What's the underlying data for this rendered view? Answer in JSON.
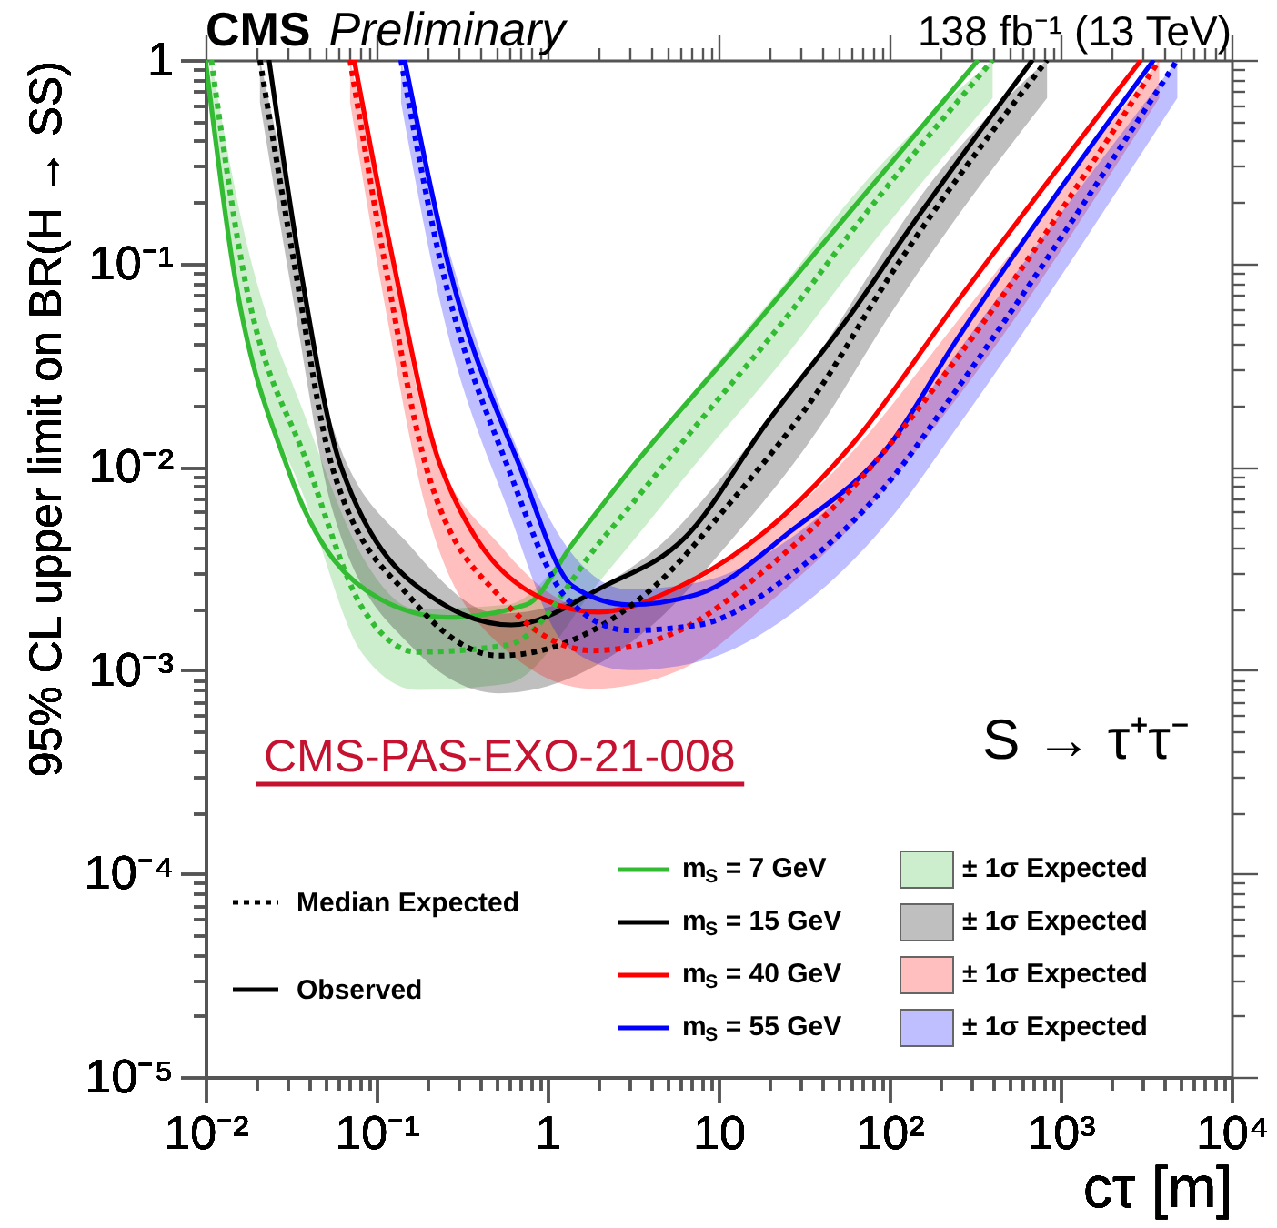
{
  "chart_data": {
    "type": "line",
    "title": "CMS",
    "subtitle": "Preliminary",
    "xlabel": "cτ [m]",
    "ylabel": "95% CL upper limit on BR(H → SS)",
    "log": "xy",
    "xlim": [
      0.01,
      10000
    ],
    "ylim": [
      1e-05,
      1
    ],
    "legend": "bottom right",
    "xticks": [
      {
        "value": 0.01,
        "label": "10⁻²"
      },
      {
        "value": 0.02,
        "label": null
      },
      {
        "value": 0.03,
        "label": null
      },
      {
        "value": 0.04,
        "label": null
      },
      {
        "value": 0.05,
        "label": null
      },
      {
        "value": 0.06,
        "label": null
      },
      {
        "value": 0.07,
        "label": null
      },
      {
        "value": 0.08,
        "label": null
      },
      {
        "value": 0.09,
        "label": null
      },
      {
        "value": 0.1,
        "label": "10⁻¹"
      },
      {
        "value": 0.2,
        "label": null
      },
      {
        "value": 0.3,
        "label": null
      },
      {
        "value": 0.4,
        "label": null
      },
      {
        "value": 0.5,
        "label": null
      },
      {
        "value": 0.6,
        "label": null
      },
      {
        "value": 0.7,
        "label": null
      },
      {
        "value": 0.8,
        "label": null
      },
      {
        "value": 0.9,
        "label": null
      },
      1,
      {
        "value": 2,
        "label": null
      },
      {
        "value": 3,
        "label": null
      },
      {
        "value": 4,
        "label": null
      },
      {
        "value": 5,
        "label": null
      },
      {
        "value": 6,
        "label": null
      },
      {
        "value": 7,
        "label": null
      },
      {
        "value": 8,
        "label": null
      },
      {
        "value": 9,
        "label": null
      },
      10,
      {
        "value": 20,
        "label": null
      },
      {
        "value": 30,
        "label": null
      },
      {
        "value": 40,
        "label": null
      },
      {
        "value": 50,
        "label": null
      },
      {
        "value": 60,
        "label": null
      },
      {
        "value": 70,
        "label": null
      },
      {
        "value": 80,
        "label": null
      },
      {
        "value": 90,
        "label": null
      },
      {
        "value": 100,
        "label": "10²"
      },
      {
        "value": 200,
        "label": null
      },
      {
        "value": 300,
        "label": null
      },
      {
        "value": 400,
        "label": null
      },
      {
        "value": 500,
        "label": null
      },
      {
        "value": 600,
        "label": null
      },
      {
        "value": 700,
        "label": null
      },
      {
        "value": 800,
        "label": null
      },
      {
        "value": 900,
        "label": null
      },
      {
        "value": 1000,
        "label": "10³"
      },
      {
        "value": 2000,
        "label": null
      },
      {
        "value": 3000,
        "label": null
      },
      {
        "value": 4000,
        "label": null
      },
      {
        "value": 5000,
        "label": null
      },
      {
        "value": 6000,
        "label": null
      },
      {
        "value": 7000,
        "label": null
      },
      {
        "value": 8000,
        "label": null
      },
      {
        "value": 9000,
        "label": null
      },
      {
        "value": 10000,
        "label": "10⁴"
      }
    ],
    "yticks": [
      {
        "value": 1e-05,
        "label": "10⁻⁵"
      },
      {
        "value": 2e-05,
        "label": null
      },
      {
        "value": 3e-05,
        "label": null
      },
      {
        "value": 4e-05,
        "label": null
      },
      {
        "value": 5e-05,
        "label": null
      },
      {
        "value": 6e-05,
        "label": null
      },
      {
        "value": 7e-05,
        "label": null
      },
      {
        "value": 8e-05,
        "label": null
      },
      {
        "value": 9e-05,
        "label": null
      },
      {
        "value": 0.0001,
        "label": "10⁻⁴"
      },
      {
        "value": 0.0002,
        "label": null
      },
      {
        "value": 0.0003,
        "label": null
      },
      {
        "value": 0.0004,
        "label": null
      },
      {
        "value": 0.0005,
        "label": null
      },
      {
        "value": 0.0006,
        "label": null
      },
      {
        "value": 0.0007,
        "label": null
      },
      {
        "value": 0.0008,
        "label": null
      },
      {
        "value": 0.0009,
        "label": null
      },
      {
        "value": 0.001,
        "label": "10⁻³"
      },
      {
        "value": 0.002,
        "label": null
      },
      {
        "value": 0.003,
        "label": null
      },
      {
        "value": 0.004,
        "label": null
      },
      {
        "value": 0.005,
        "label": null
      },
      {
        "value": 0.006,
        "label": null
      },
      {
        "value": 0.007,
        "label": null
      },
      {
        "value": 0.008,
        "label": null
      },
      {
        "value": 0.009,
        "label": null
      },
      {
        "value": 0.01,
        "label": "10⁻²"
      },
      {
        "value": 0.02,
        "label": null
      },
      {
        "value": 0.03,
        "label": null
      },
      {
        "value": 0.04,
        "label": null
      },
      {
        "value": 0.05,
        "label": null
      },
      {
        "value": 0.06,
        "label": null
      },
      {
        "value": 0.07,
        "label": null
      },
      {
        "value": 0.08,
        "label": null
      },
      {
        "value": 0.09,
        "label": null
      },
      {
        "value": 0.1,
        "label": "10⁻¹"
      },
      {
        "value": 0.2,
        "label": null
      },
      {
        "value": 0.3,
        "label": null
      },
      {
        "value": 0.4,
        "label": null
      },
      {
        "value": 0.5,
        "label": null
      },
      {
        "value": 0.6,
        "label": null
      },
      {
        "value": 0.7,
        "label": null
      },
      {
        "value": 0.8,
        "label": null
      },
      {
        "value": 0.9,
        "label": null
      },
      1
    ],
    "annotations": [
      "Median Expected",
      "Observed",
      "138 fb⁻¹ (13 TeV)",
      "S → τ⁺τ⁻",
      "CMS-PAS-EXO-21-008"
    ],
    "series": [
      {
        "name": "m$_{S}$ = 7 GeV",
        "color": "#33bb33",
        "line_style": "solid",
        "x": [
          0.01,
          0.0144,
          0.03,
          0.106,
          0.262,
          0.75,
          1.41,
          3.14,
          17.7,
          32.6,
          330
        ],
        "values": [
          1,
          0.1,
          0.01,
          0.00223,
          0.00182,
          0.0021,
          0.00422,
          0.01,
          0.054,
          0.1,
          1
        ]
      },
      {
        "name": "m$_{S}$ = 15 GeV",
        "color": "#000000",
        "line_style": "solid",
        "x": [
          0.0235,
          0.0355,
          0.062,
          0.221,
          0.614,
          2.13,
          6.37,
          19.1,
          61.4,
          122,
          686
        ],
        "values": [
          1,
          0.1,
          0.01,
          0.00223,
          0.00167,
          0.00258,
          0.00449,
          0.0164,
          0.0586,
          0.136,
          1
        ]
      },
      {
        "name": "m$_{S}$ = 40 GeV",
        "color": "#ff0000",
        "line_style": "solid",
        "x": [
          0.074,
          0.126,
          0.238,
          0.95,
          1.98,
          5.92,
          19.1,
          61.4,
          240,
          2960
        ],
        "values": [
          1,
          0.1,
          0.01,
          0.00223,
          0.00193,
          0.00258,
          0.00487,
          0.0131,
          0.0623,
          1
        ]
      },
      {
        "name": "m$_{S}$ = 55 GeV",
        "color": "#0000ff",
        "line_style": "solid",
        "x": [
          0.146,
          0.262,
          0.69,
          1.41,
          2.99,
          7.6,
          26.8,
          102,
          240,
          3510
        ],
        "values": [
          1,
          0.1,
          0.01,
          0.00258,
          0.0021,
          0.00237,
          0.00487,
          0.0131,
          0.0405,
          1
        ]
      },
      {
        "name": "± 1σ Expected",
        "color": "#33bb33",
        "line_style": "dotted",
        "x": [
          0.0108,
          0.0163,
          0.04,
          0.083,
          0.173,
          0.585,
          2.13,
          7.6,
          26.8,
          57.1,
          401
        ],
        "values": [
          1,
          0.1,
          0.01,
          0.00201,
          0.00123,
          0.00133,
          0.00449,
          0.0164,
          0.0586,
          0.136,
          1
        ],
        "lower": [
          0.62,
          0.062,
          0.0062,
          0.0012,
          0.0008,
          0.00086,
          0.0029,
          0.0107,
          0.038,
          0.088,
          0.65
        ],
        "upper": [
          1,
          0.16,
          0.016,
          0.0036,
          0.002,
          0.0021,
          0.0067,
          0.025,
          0.088,
          0.2,
          1
        ]
      },
      {
        "name": "± 1σ Expected",
        "color": "#000000",
        "line_style": "dotted",
        "x": [
          0.0208,
          0.033,
          0.055,
          0.161,
          0.518,
          4.21,
          11.4,
          37.7,
          102,
          144,
          834
        ],
        "values": [
          1,
          0.1,
          0.01,
          0.00223,
          0.00118,
          0.00258,
          0.00649,
          0.0232,
          0.0884,
          0.136,
          1
        ],
        "lower": [
          0.62,
          0.062,
          0.0062,
          0.0013,
          0.00077,
          0.0017,
          0.0042,
          0.015,
          0.057,
          0.088,
          0.65
        ],
        "upper": [
          1,
          0.16,
          0.016,
          0.004,
          0.0019,
          0.0039,
          0.0097,
          0.035,
          0.13,
          0.2,
          1
        ]
      },
      {
        "name": "± 1σ Expected",
        "color": "#ff0000",
        "line_style": "dotted",
        "x": [
          0.07,
          0.112,
          0.195,
          0.544,
          1.84,
          5.92,
          19.1,
          61.4,
          240,
          3780
        ],
        "values": [
          1,
          0.1,
          0.01,
          0.00223,
          0.00125,
          0.00157,
          0.00316,
          0.00798,
          0.033,
          1
        ],
        "lower": [
          0.62,
          0.062,
          0.0062,
          0.0013,
          0.00081,
          0.001,
          0.0021,
          0.0052,
          0.021,
          0.65
        ],
        "upper": [
          1,
          0.16,
          0.016,
          0.004,
          0.002,
          0.0025,
          0.0047,
          0.012,
          0.05,
          1
        ]
      },
      {
        "name": "± 1σ Expected",
        "color": "#0000ff",
        "line_style": "dotted",
        "x": [
          0.139,
          0.238,
          0.585,
          1.31,
          2.99,
          7.6,
          26.8,
          102,
          240,
          4820
        ],
        "values": [
          1,
          0.1,
          0.01,
          0.00223,
          0.00157,
          0.00167,
          0.00297,
          0.00866,
          0.0232,
          1
        ],
        "lower": [
          0.62,
          0.062,
          0.0062,
          0.0013,
          0.001,
          0.0011,
          0.0019,
          0.0056,
          0.015,
          0.65
        ],
        "upper": [
          1,
          0.16,
          0.016,
          0.004,
          0.0025,
          0.0027,
          0.0045,
          0.013,
          0.035,
          1
        ]
      }
    ]
  }
}
